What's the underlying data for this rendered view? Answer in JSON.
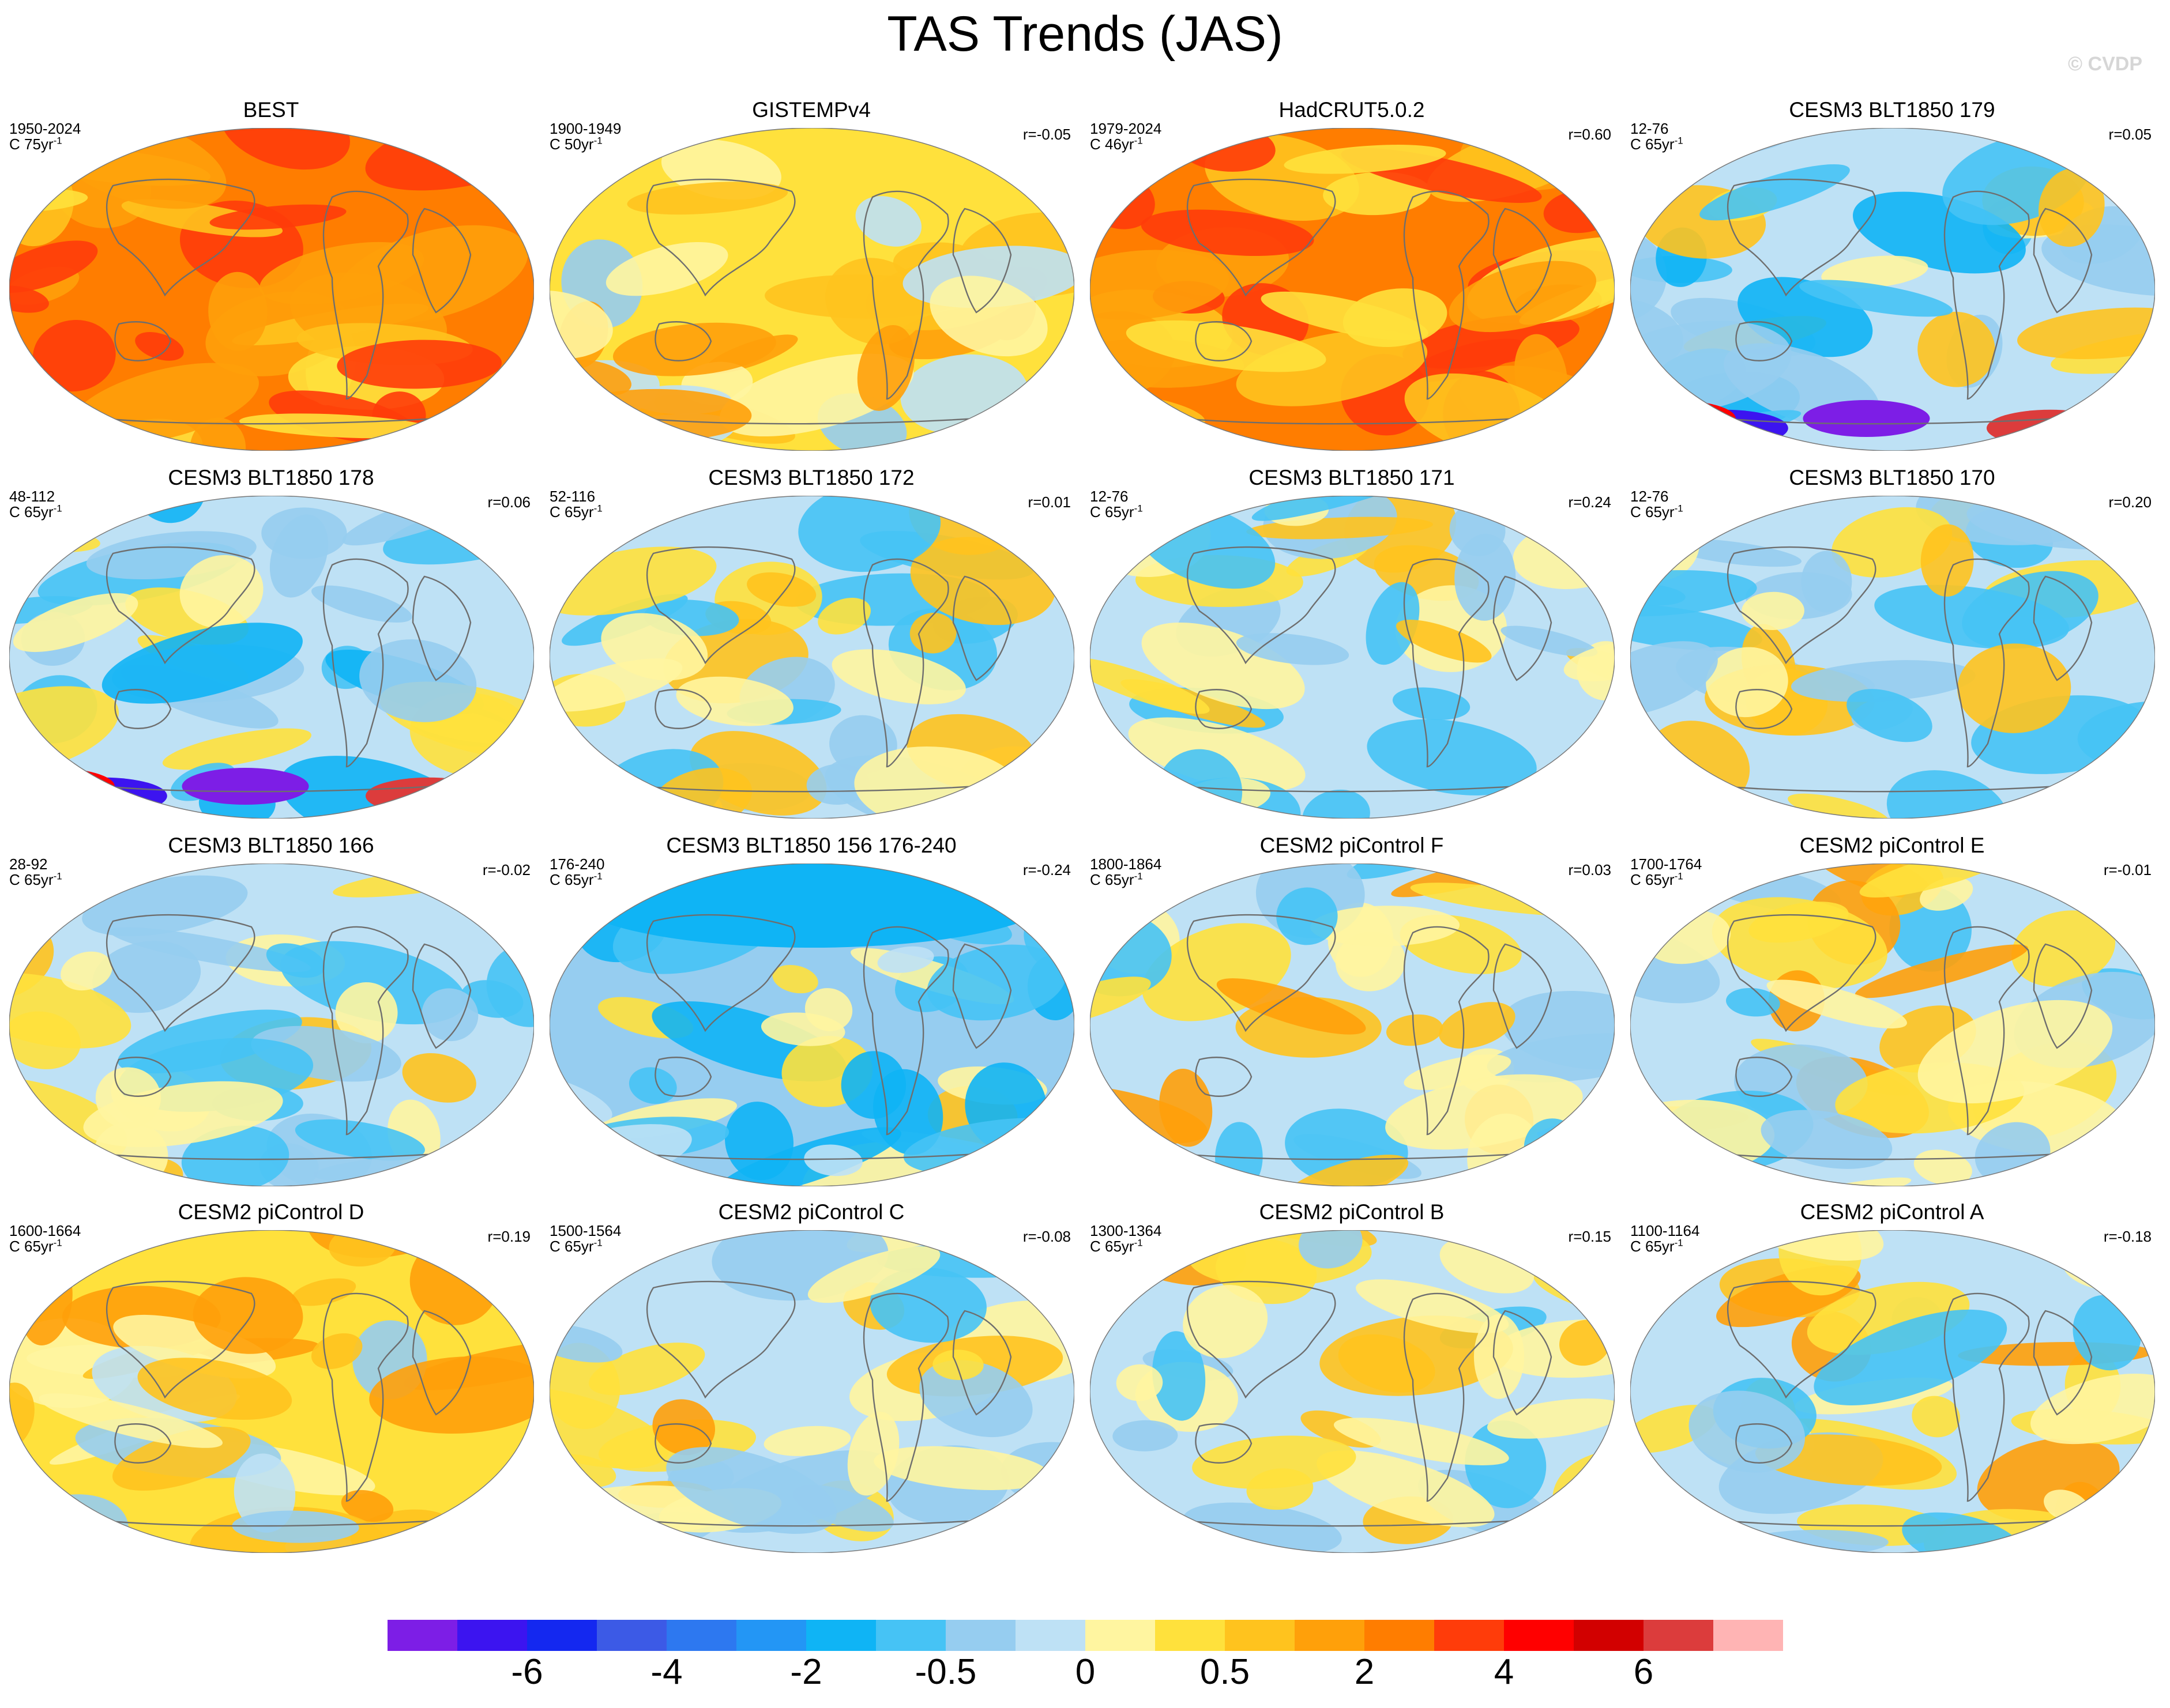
{
  "title": "TAS Trends (JAS)",
  "watermark": "© CVDP",
  "units_prefix": "C ",
  "units_suffix": "yr",
  "units_exp": "-1",
  "panels": [
    {
      "title": "BEST",
      "period": "1950-2024",
      "years": "75",
      "r": "",
      "mode": "warm"
    },
    {
      "title": "GISTEMPv4",
      "period": "1900-1949",
      "years": "50",
      "r": "r=-0.05",
      "mode": "mixwarm"
    },
    {
      "title": "HadCRUT5.0.2",
      "period": "1979-2024",
      "years": "46",
      "r": "r=0.60",
      "mode": "hot"
    },
    {
      "title": "CESM3 BLT1850 179",
      "period": "12-76",
      "years": "65",
      "r": "r=0.05",
      "mode": "coolS"
    },
    {
      "title": "CESM3 BLT1850 178",
      "period": "48-112",
      "years": "65",
      "r": "r=0.06",
      "mode": "coolS"
    },
    {
      "title": "CESM3 BLT1850 172",
      "period": "52-116",
      "years": "65",
      "r": "r=0.01",
      "mode": "cool"
    },
    {
      "title": "CESM3 BLT1850 171",
      "period": "12-76",
      "years": "65",
      "r": "r=0.24",
      "mode": "cool"
    },
    {
      "title": "CESM3 BLT1850 170",
      "period": "12-76",
      "years": "65",
      "r": "r=0.20",
      "mode": "cool"
    },
    {
      "title": "CESM3 BLT1850 166",
      "period": "28-92",
      "years": "65",
      "r": "r=-0.02",
      "mode": "cool"
    },
    {
      "title": "CESM3 BLT1850 156 176-240",
      "period": "176-240",
      "years": "65",
      "r": "r=-0.24",
      "mode": "coolN"
    },
    {
      "title": "CESM2 piControl F",
      "period": "1800-1864",
      "years": "65",
      "r": "r=0.03",
      "mode": "mix"
    },
    {
      "title": "CESM2 piControl E",
      "period": "1700-1764",
      "years": "65",
      "r": "r=-0.01",
      "mode": "mix"
    },
    {
      "title": "CESM2 piControl D",
      "period": "1600-1664",
      "years": "65",
      "r": "r=0.19",
      "mode": "mixwarm"
    },
    {
      "title": "CESM2 piControl C",
      "period": "1500-1564",
      "years": "65",
      "r": "r=-0.08",
      "mode": "mix"
    },
    {
      "title": "CESM2 piControl B",
      "period": "1300-1364",
      "years": "65",
      "r": "r=0.15",
      "mode": "mix"
    },
    {
      "title": "CESM2 piControl A",
      "period": "1100-1164",
      "years": "65",
      "r": "r=-0.18",
      "mode": "mix"
    }
  ],
  "colorbar": {
    "colors": [
      "#7d1ee6",
      "#3c14f0",
      "#1428f0",
      "#3c5ae6",
      "#2d78f0",
      "#2396f5",
      "#0fb4f5",
      "#46c3f5",
      "#96cdf0",
      "#bee1f5",
      "#fff5a0",
      "#ffe13c",
      "#ffc31e",
      "#ffa00a",
      "#ff7d00",
      "#ff3c0a",
      "#ff0000",
      "#d20000",
      "#dc3c3c",
      "#ffb4b4"
    ],
    "tick_labels": [
      "-6",
      "-4",
      "-2",
      "-0.5",
      "0",
      "0.5",
      "2",
      "4",
      "6"
    ],
    "tick_boundary_index": [
      2,
      4,
      6,
      8,
      10,
      12,
      14,
      16,
      18
    ]
  }
}
